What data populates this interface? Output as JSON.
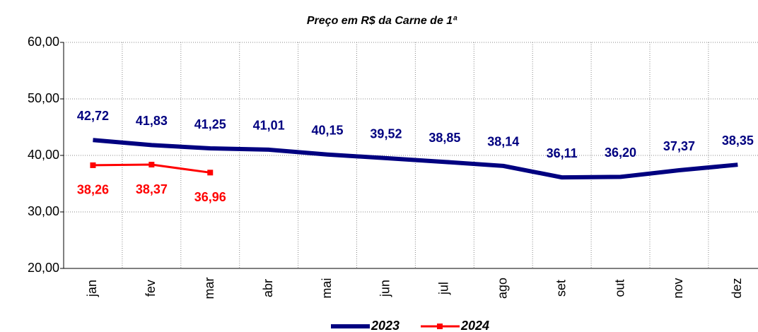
{
  "chart_data": {
    "type": "line",
    "title": "Preço em R$ da Carne de 1ª",
    "categories": [
      "jan",
      "fev",
      "mar",
      "abr",
      "mai",
      "jun",
      "jul",
      "ago",
      "set",
      "out",
      "nov",
      "dez"
    ],
    "series": [
      {
        "name": "2023",
        "color": "#000080",
        "values": [
          42.72,
          41.83,
          41.25,
          41.01,
          40.15,
          39.52,
          38.85,
          38.14,
          36.11,
          36.2,
          37.37,
          38.35
        ],
        "value_labels": [
          "42,72",
          "41,83",
          "41,25",
          "41,01",
          "40,15",
          "39,52",
          "38,85",
          "38,14",
          "36,11",
          "36,20",
          "37,37",
          "38,35"
        ]
      },
      {
        "name": "2024",
        "color": "#ff0000",
        "values": [
          38.26,
          38.37,
          36.96,
          null,
          null,
          null,
          null,
          null,
          null,
          null,
          null,
          null
        ],
        "value_labels": [
          "38,26",
          "38,37",
          "36,96",
          null,
          null,
          null,
          null,
          null,
          null,
          null,
          null,
          null
        ]
      }
    ],
    "ylim": [
      20,
      60
    ],
    "yticks": [
      {
        "value": 20,
        "label": "20,00"
      },
      {
        "value": 30,
        "label": "30,00"
      },
      {
        "value": 40,
        "label": "40,00"
      },
      {
        "value": 50,
        "label": "50,00"
      },
      {
        "value": 60,
        "label": "60,00"
      }
    ],
    "grid": true,
    "legend": "bottom"
  }
}
